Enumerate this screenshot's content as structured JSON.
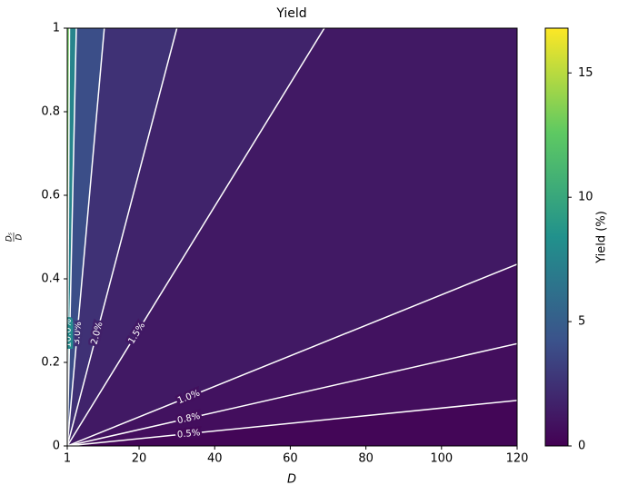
{
  "chart_data": {
    "type": "contour",
    "title": "Yield",
    "x_label": "D",
    "y_label": {
      "numerator": "Dₛ",
      "denominator": "D"
    },
    "xlim": [
      1,
      120
    ],
    "ylim": [
      0,
      1
    ],
    "xticks": [
      1,
      20,
      40,
      60,
      80,
      100,
      120
    ],
    "yticks": [
      0,
      0.2,
      0.4,
      0.6,
      0.8,
      1
    ],
    "line_color": "#ffffff",
    "contours": [
      {
        "level": 0.5,
        "label": "0.5%",
        "x": [
          1,
          120
        ],
        "y": [
          0,
          0.109
        ]
      },
      {
        "level": 0.8,
        "label": "0.8%",
        "x": [
          1,
          120
        ],
        "y": [
          0,
          0.245
        ]
      },
      {
        "level": 1.0,
        "label": "1.0%",
        "x": [
          1,
          120
        ],
        "y": [
          0,
          0.435
        ]
      },
      {
        "level": 1.5,
        "label": "1.5%",
        "x": [
          1,
          69
        ],
        "y": [
          0,
          1
        ]
      },
      {
        "level": 2.0,
        "label": "2.0%",
        "x": [
          1,
          30
        ],
        "y": [
          0,
          1
        ]
      },
      {
        "level": 3.0,
        "label": "3.0%",
        "x": [
          1,
          10.8
        ],
        "y": [
          0,
          1
        ]
      },
      {
        "level": 5.0,
        "label": "5.0%",
        "x": [
          1,
          3.4
        ],
        "y": [
          0,
          1
        ]
      },
      {
        "level": 10.0,
        "label": "10.0%",
        "x": [
          1,
          1.6
        ],
        "y": [
          0,
          1
        ]
      }
    ],
    "colorbar": {
      "label": "Yield (%)",
      "lim": [
        0,
        16.8
      ],
      "ticks": [
        0,
        5,
        10,
        15
      ],
      "colormap": "viridis"
    }
  }
}
